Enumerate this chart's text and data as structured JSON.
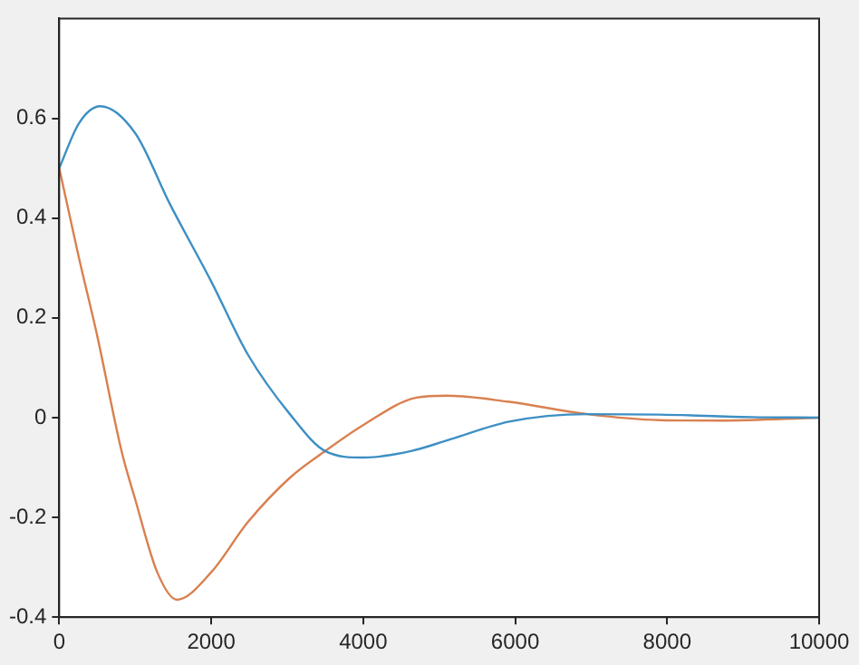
{
  "chart_data": {
    "type": "line",
    "x": [
      0,
      260,
      540,
      1000,
      1450,
      2000,
      2480,
      3040,
      3500,
      4000,
      4630,
      5120,
      5920,
      6950,
      7900,
      9100,
      10000
    ],
    "series": [
      {
        "color": "#3d8fc4",
        "values": [
          0.5,
          0.59,
          0.624,
          0.57,
          0.43,
          0.273,
          0.127,
          0.006,
          -0.067,
          -0.08,
          -0.067,
          -0.045,
          -0.008,
          0.007,
          0.006,
          0.001,
          0
        ]
      },
      {
        "color": "#d9804f",
        "x": [
          0,
          260,
          500,
          820,
          1000,
          1290,
          1550,
          2000,
          2480,
          3040,
          3500,
          4000,
          4700,
          5100,
          5900,
          6950,
          7900,
          8700,
          10000
        ],
        "values": [
          0.5,
          0.32,
          0.164,
          -0.067,
          -0.164,
          -0.31,
          -0.365,
          -0.31,
          -0.21,
          -0.12,
          -0.067,
          -0.015,
          0.04,
          0.044,
          0.032,
          0.007,
          -0.005,
          -0.006,
          0
        ]
      }
    ],
    "xlim": [
      0,
      10000
    ],
    "xticks": [
      0,
      2000,
      4000,
      6000,
      8000,
      10000
    ],
    "ylim": [
      -0.4,
      0.8
    ],
    "yticks": [
      -0.4,
      -0.2,
      0,
      0.2,
      0.4,
      0.6
    ],
    "grid": false,
    "legend": false,
    "marker": "none",
    "line_style": "solid"
  }
}
